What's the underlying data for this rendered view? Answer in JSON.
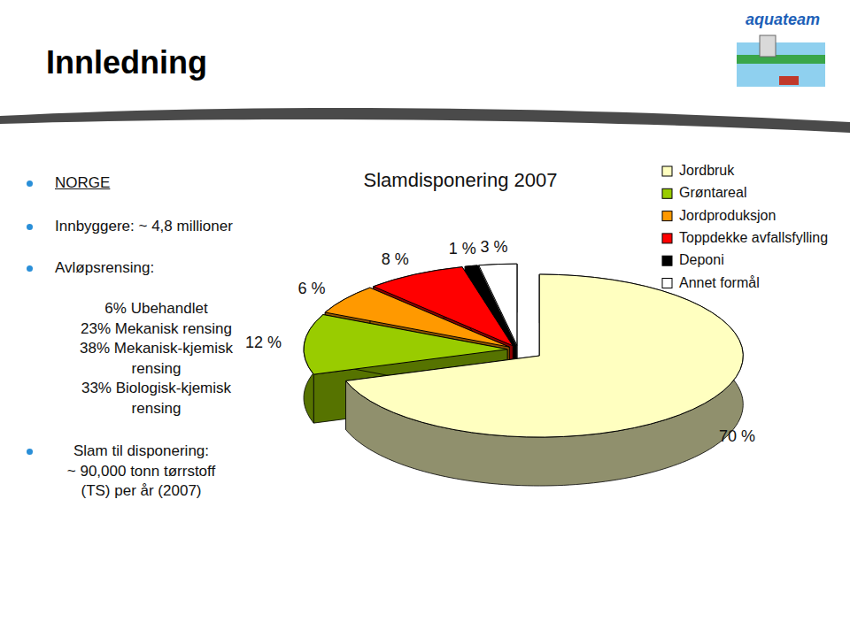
{
  "header": {
    "title": "Innledning",
    "logo": "aquateam"
  },
  "bullets": [
    {
      "lines": [
        "NORGE"
      ]
    },
    {
      "lines": [
        "Innbyggere: ~ 4,8 millioner"
      ]
    },
    {
      "lines": [
        "Avløpsrensing:"
      ],
      "items": [
        "6% Ubehandlet",
        "23% Mekanisk rensing",
        "38% Mekanisk-kjemisk rensing",
        "33% Biologisk-kjemisk rensing"
      ]
    },
    {
      "lines": [
        "Slam til disponering:",
        "~ 90,000 tonn tørrstoff",
        "(TS) per år (2007)"
      ]
    }
  ],
  "chart_data": {
    "type": "pie",
    "title": "Slamdisponering 2007",
    "categories": [
      "Jordbruk",
      "Grøntareal",
      "Jordproduksjon",
      "Toppdekke avfallsfylling",
      "Deponi",
      "Annet formål"
    ],
    "values": [
      70,
      12,
      6,
      8,
      1,
      3
    ],
    "value_labels": [
      "70 %",
      "12 %",
      "6 %",
      "8 %",
      "1 %",
      "3 %"
    ],
    "colors": [
      "#ffffc0",
      "#99cc00",
      "#ff9900",
      "#ff0000",
      "#000000",
      "#ffffff"
    ],
    "data_labels": true,
    "legend": "upper right"
  }
}
